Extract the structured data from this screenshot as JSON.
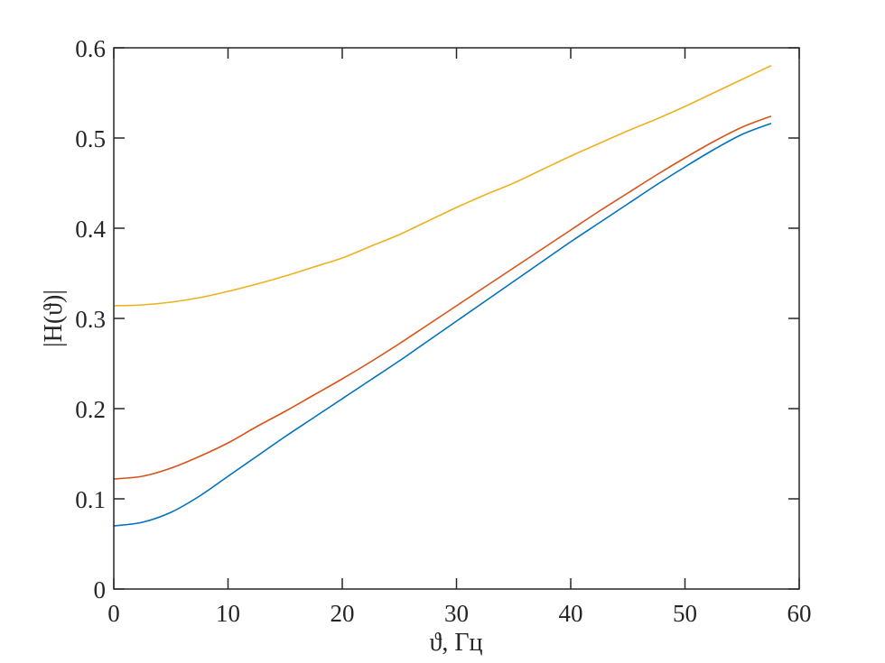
{
  "figure": {
    "background": "#ffffff",
    "axis_color": "#262626"
  },
  "chart_data": {
    "type": "line",
    "xlabel": "ϑ, Гц",
    "ylabel": "|H(ϑ)|",
    "xlim": [
      0,
      60
    ],
    "ylim": [
      0,
      0.6
    ],
    "xticks": {
      "values": [
        0,
        10,
        20,
        30,
        40,
        50,
        60
      ],
      "labels": [
        "0",
        "10",
        "20",
        "30",
        "40",
        "50",
        "60"
      ]
    },
    "yticks": {
      "values": [
        0,
        0.1,
        0.2,
        0.3,
        0.4,
        0.5,
        0.6
      ],
      "labels": [
        "0",
        "0.1",
        "0.2",
        "0.3",
        "0.4",
        "0.5",
        "0.6"
      ]
    },
    "grid": false,
    "legend": "none",
    "box": true,
    "tick_direction": "in",
    "x": [
      0,
      2.5,
      5,
      7.5,
      10,
      12.5,
      15,
      17.5,
      20,
      22.5,
      25,
      27.5,
      30,
      32.5,
      35,
      37.5,
      40,
      42.5,
      45,
      47.5,
      50,
      52.5,
      55,
      57.5
    ],
    "series": [
      {
        "name": "series-blue",
        "color": "#0072BD",
        "values": [
          0.07,
          0.074,
          0.085,
          0.103,
          0.125,
          0.147,
          0.169,
          0.19,
          0.211,
          0.232,
          0.253,
          0.275,
          0.297,
          0.319,
          0.341,
          0.363,
          0.385,
          0.406,
          0.427,
          0.448,
          0.468,
          0.487,
          0.504,
          0.516
        ]
      },
      {
        "name": "series-orange",
        "color": "#D95319",
        "values": [
          0.122,
          0.125,
          0.134,
          0.147,
          0.162,
          0.18,
          0.197,
          0.215,
          0.233,
          0.252,
          0.272,
          0.293,
          0.314,
          0.335,
          0.356,
          0.377,
          0.398,
          0.419,
          0.439,
          0.459,
          0.478,
          0.496,
          0.512,
          0.524
        ]
      },
      {
        "name": "series-yellow",
        "color": "#EDB120",
        "values": [
          0.314,
          0.315,
          0.318,
          0.323,
          0.33,
          0.338,
          0.347,
          0.357,
          0.367,
          0.38,
          0.393,
          0.408,
          0.423,
          0.437,
          0.45,
          0.465,
          0.48,
          0.494,
          0.508,
          0.521,
          0.535,
          0.55,
          0.565,
          0.58
        ]
      }
    ]
  }
}
